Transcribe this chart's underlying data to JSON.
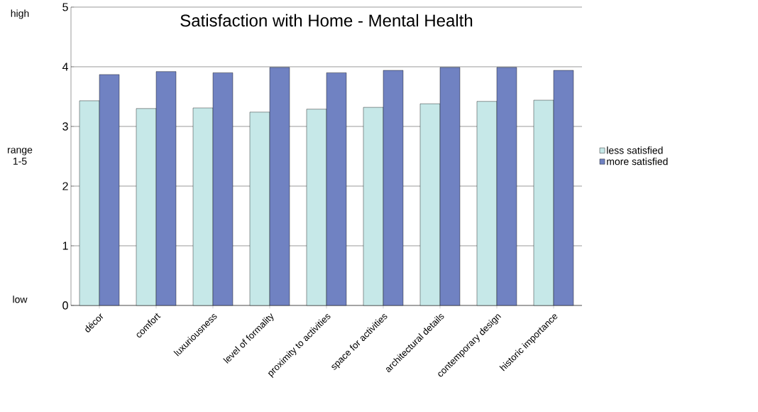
{
  "chart_data": {
    "type": "bar",
    "title": "Satisfaction with Home - Mental Health",
    "ylabel": "range 1-5",
    "annotations": [
      "high",
      "low"
    ],
    "categories": [
      "décor",
      "comfort",
      "luxuriousness",
      "level of formality",
      "proximity to activities",
      "space for activities",
      "architectural details",
      "contemporary design",
      "historic importance"
    ],
    "series": [
      {
        "name": "less satisfied",
        "color": "#c6e8e8",
        "values": [
          3.43,
          3.3,
          3.31,
          3.24,
          3.29,
          3.32,
          3.38,
          3.42,
          3.44
        ]
      },
      {
        "name": "more satisfied",
        "color": "#7082c2",
        "values": [
          3.87,
          3.92,
          3.9,
          3.99,
          3.9,
          3.94,
          3.99,
          3.99,
          3.94
        ]
      }
    ],
    "ylim": [
      0,
      5
    ],
    "yticks": [
      0,
      1,
      2,
      3,
      4,
      5
    ],
    "grid": "y",
    "legend": "right"
  }
}
